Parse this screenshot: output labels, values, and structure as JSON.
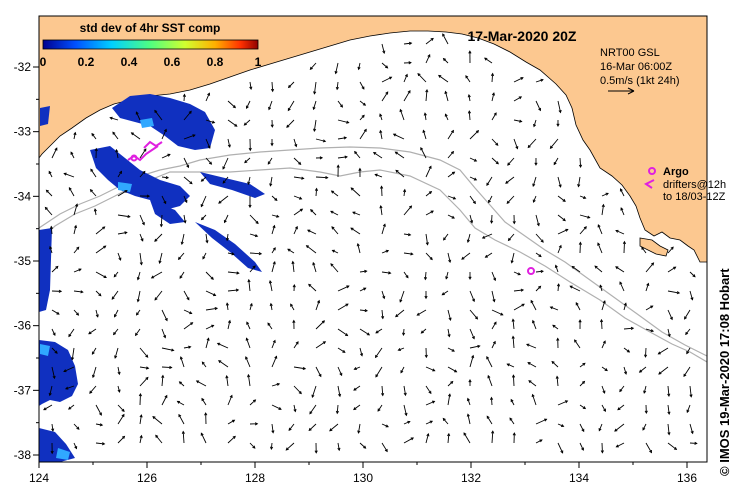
{
  "header": {
    "date_title": "17-Mar-2020 20Z"
  },
  "colorbar": {
    "title": "std dev of 4hr SST comp",
    "ticks": [
      "0",
      "0.2",
      "0.4",
      "0.6",
      "0.8",
      "1"
    ],
    "colors": [
      "#00008f",
      "#0050ff",
      "#00d0ff",
      "#50ff80",
      "#d0ff30",
      "#ffb000",
      "#ff3000",
      "#8f0000"
    ]
  },
  "legend_current": {
    "line1": "NRT00 GSL",
    "line2": "16-Mar 06:00Z",
    "line3": "0.5m/s (1kt 24h)"
  },
  "legend_argo": {
    "title": "Argo",
    "line1": "drifters@12h",
    "line2": "to 18/03-12Z",
    "color": "#e020e0"
  },
  "credit": {
    "text": "IMOS 19-Mar-2020 17:08 Hobart",
    "copyright": "©"
  },
  "map": {
    "land_color": "#fcc890",
    "axis_x_ticks": [
      "124",
      "126",
      "128",
      "130",
      "132",
      "134",
      "136"
    ],
    "axis_y_ticks": [
      "-32",
      "-33",
      "-34",
      "-35",
      "-36",
      "-37",
      "-38"
    ]
  }
}
